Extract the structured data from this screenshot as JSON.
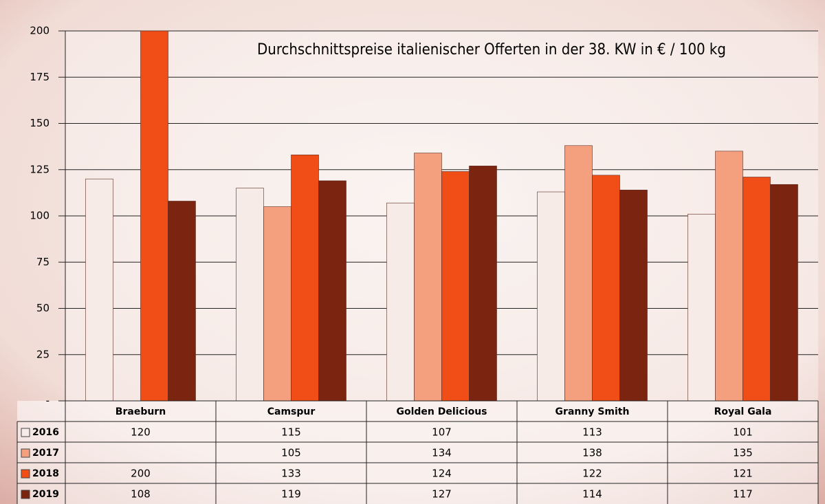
{
  "chart_data": {
    "type": "bar",
    "title": "Durchschnittspreise italienischer Offerten in der 38. KW in € / 100 kg",
    "categories": [
      "Braeburn",
      "Camspur",
      "Golden Delicious",
      "Granny Smith",
      "Royal Gala"
    ],
    "series": [
      {
        "name": "2016",
        "color": "#f6ebe6",
        "values": [
          120,
          115,
          107,
          113,
          101
        ]
      },
      {
        "name": "2017",
        "color": "#f4a07f",
        "values": [
          null,
          105,
          134,
          138,
          135
        ]
      },
      {
        "name": "2018",
        "color": "#f04e16",
        "values": [
          200,
          133,
          124,
          122,
          121
        ]
      },
      {
        "name": "2019",
        "color": "#7b2410",
        "values": [
          108,
          119,
          127,
          114,
          117
        ]
      }
    ],
    "ylim": [
      0,
      200
    ],
    "yticks": [
      {
        "value": 0,
        "label": "-"
      },
      25,
      50,
      75,
      100,
      125,
      150,
      175,
      200
    ],
    "grid": true
  }
}
